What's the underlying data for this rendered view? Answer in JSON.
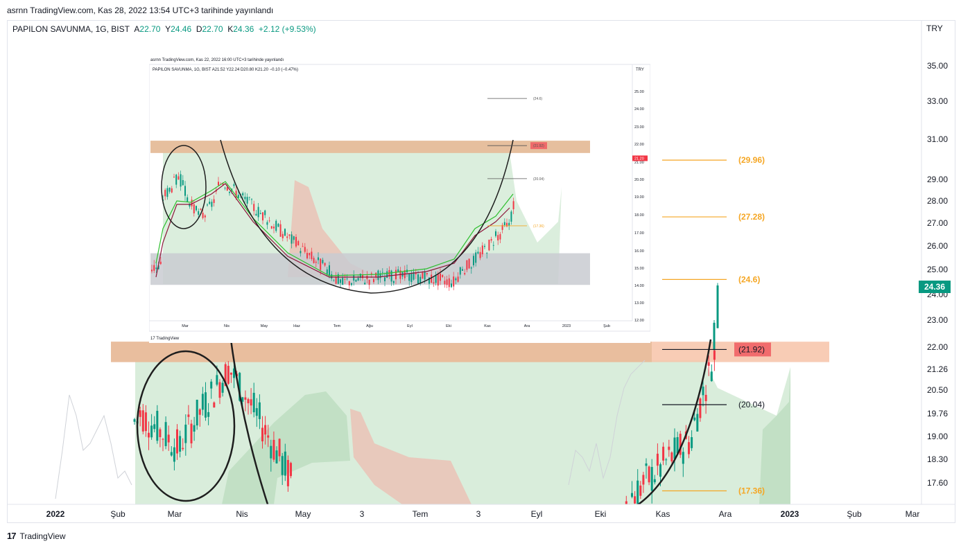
{
  "caption": "asrnn TradingView.com, Kas 28, 2022 13:54 UTC+3 tarihinde yayınlandı",
  "legend": {
    "symbol": "PAPILON SAVUNMA, 1G, BIST",
    "o_label": "A",
    "o": "22.70",
    "h_label": "Y",
    "h": "24.46",
    "l_label": "D",
    "l": "22.70",
    "c_label": "K",
    "c": "24.36",
    "change": "+2.12 (+9.53%)"
  },
  "currency": "TRY",
  "current_price": "24.36",
  "footer_brand": "TradingView",
  "colors": {
    "up": "#089981",
    "down": "#f23645",
    "zone": "#f7c3a8",
    "cloud_green": "#d7ecd9",
    "cloud_red": "#e8c9bc",
    "level_orange": "#f5a623"
  },
  "chart_data": {
    "type": "candlestick",
    "y_axis_ticks": [
      "35.00",
      "33.00",
      "31.00",
      "29.00",
      "28.00",
      "27.00",
      "26.00",
      "25.00",
      "24.00",
      "23.00",
      "22.00",
      "21.26",
      "20.50",
      "19.76",
      "19.00",
      "18.30",
      "17.60"
    ],
    "x_axis_ticks": [
      "2022",
      "Şub",
      "Mar",
      "Nis",
      "May",
      "3",
      "Tem",
      "3",
      "Eyl",
      "Eki",
      "Kas",
      "Ara",
      "2023",
      "Şub",
      "Mar"
    ],
    "levels": [
      {
        "label": "(29.96)",
        "value": 29.96,
        "style": "orange"
      },
      {
        "label": "(27.28)",
        "value": 27.28,
        "style": "orange"
      },
      {
        "label": "(24.6)",
        "value": 24.6,
        "style": "orange"
      },
      {
        "label": "(21.92)",
        "value": 21.92,
        "style": "red-box"
      },
      {
        "label": "(20.04)",
        "value": 20.04,
        "style": "black"
      },
      {
        "label": "(17.36)",
        "value": 17.36,
        "style": "orange"
      }
    ],
    "resistance_zone": [
      21.5,
      22.2
    ],
    "last_close": 24.36
  },
  "inset": {
    "caption": "asrnn TradingView.com, Kas 22, 2022 16:00 UTC+3 tarihinde yayınlandı",
    "legend": "PAPILON SAVUNMA, 1G, BIST  A21.52  Y22.24  D20.80  K21.20  −0.10 (−0.47%)",
    "currency": "TRY",
    "current_price": "21.20",
    "brand": "TradingView",
    "y_axis_ticks": [
      "25.00",
      "24.00",
      "23.00",
      "22.00",
      "21.00",
      "20.00",
      "19.00",
      "18.00",
      "17.00",
      "16.00",
      "15.00",
      "14.00",
      "13.00",
      "12.00"
    ],
    "x_axis_ticks": [
      "Mar",
      "Nis",
      "May",
      "Haz",
      "Tem",
      "Ağu",
      "Eyl",
      "Eki",
      "Kas",
      "Ara",
      "2023",
      "Şub"
    ],
    "levels": [
      {
        "label": "(24.6)",
        "value": 24.6
      },
      {
        "label": "(21.92)",
        "value": 21.92
      },
      {
        "label": "(20.04)",
        "value": 20.04
      },
      {
        "label": "(17.36)",
        "value": 17.36
      }
    ]
  }
}
